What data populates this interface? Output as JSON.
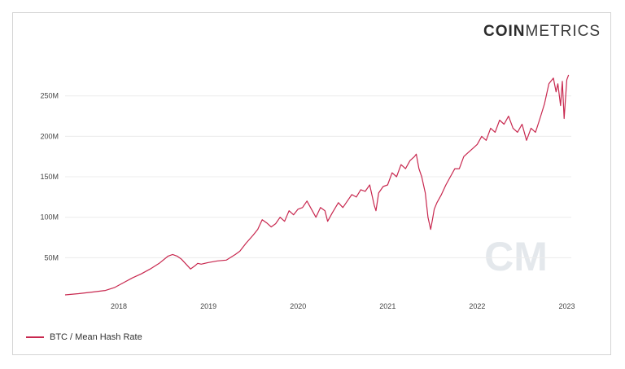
{
  "brand": {
    "bold": "COIN",
    "light": "METRICS"
  },
  "watermark": "CM",
  "colors": {
    "line": "#c8284f",
    "grid": "#ececec",
    "tick": "#444444",
    "watermark": "#e4e8ec"
  },
  "chart_data": {
    "type": "line",
    "title": "",
    "xlabel": "",
    "ylabel": "",
    "grid": true,
    "legend_position": "bottom-left",
    "xlim": [
      2017.4,
      2023.05
    ],
    "ylim": [
      0,
      290000000
    ],
    "yticks": [
      50000000,
      100000000,
      150000000,
      200000000,
      250000000
    ],
    "ytick_labels": [
      "50M",
      "100M",
      "150M",
      "200M",
      "250M"
    ],
    "xticks": [
      2018,
      2019,
      2020,
      2021,
      2022,
      2023
    ],
    "xtick_labels": [
      "2018",
      "2019",
      "2020",
      "2021",
      "2022",
      "2023"
    ],
    "series": [
      {
        "name": "BTC / Mean Hash Rate",
        "x": [
          2017.4,
          2017.55,
          2017.7,
          2017.85,
          2017.95,
          2018.05,
          2018.15,
          2018.25,
          2018.35,
          2018.45,
          2018.55,
          2018.6,
          2018.65,
          2018.7,
          2018.8,
          2018.85,
          2018.88,
          2018.92,
          2019.0,
          2019.1,
          2019.2,
          2019.3,
          2019.35,
          2019.42,
          2019.5,
          2019.55,
          2019.6,
          2019.65,
          2019.7,
          2019.75,
          2019.8,
          2019.85,
          2019.9,
          2019.95,
          2020.0,
          2020.05,
          2020.1,
          2020.15,
          2020.2,
          2020.25,
          2020.3,
          2020.33,
          2020.38,
          2020.45,
          2020.5,
          2020.55,
          2020.6,
          2020.65,
          2020.7,
          2020.75,
          2020.8,
          2020.85,
          2020.87,
          2020.9,
          2020.95,
          2021.0,
          2021.05,
          2021.1,
          2021.15,
          2021.2,
          2021.25,
          2021.3,
          2021.32,
          2021.35,
          2021.38,
          2021.42,
          2021.45,
          2021.48,
          2021.5,
          2021.52,
          2021.55,
          2021.6,
          2021.65,
          2021.7,
          2021.75,
          2021.8,
          2021.85,
          2021.9,
          2021.95,
          2022.0,
          2022.05,
          2022.1,
          2022.15,
          2022.2,
          2022.25,
          2022.3,
          2022.35,
          2022.4,
          2022.45,
          2022.5,
          2022.55,
          2022.6,
          2022.65,
          2022.7,
          2022.75,
          2022.8,
          2022.85,
          2022.88,
          2022.9,
          2022.93,
          2022.95,
          2022.97,
          2023.0,
          2023.02
        ],
        "values": [
          4000000,
          5500000,
          7500000,
          9500000,
          13000000,
          19000000,
          25000000,
          30000000,
          36000000,
          43000000,
          52000000,
          54000000,
          52000000,
          48000000,
          36000000,
          40000000,
          43000000,
          42000000,
          44000000,
          46000000,
          47000000,
          54000000,
          58000000,
          68000000,
          78000000,
          85000000,
          97000000,
          93000000,
          88000000,
          92000000,
          100000000,
          95000000,
          108000000,
          103000000,
          110000000,
          112000000,
          120000000,
          110000000,
          100000000,
          112000000,
          108000000,
          95000000,
          105000000,
          118000000,
          112000000,
          120000000,
          128000000,
          125000000,
          134000000,
          132000000,
          140000000,
          115000000,
          108000000,
          130000000,
          138000000,
          140000000,
          155000000,
          150000000,
          165000000,
          160000000,
          170000000,
          175000000,
          178000000,
          160000000,
          150000000,
          130000000,
          100000000,
          85000000,
          97000000,
          110000000,
          118000000,
          128000000,
          140000000,
          150000000,
          160000000,
          160000000,
          175000000,
          180000000,
          185000000,
          190000000,
          200000000,
          195000000,
          210000000,
          205000000,
          220000000,
          215000000,
          225000000,
          210000000,
          205000000,
          215000000,
          195000000,
          210000000,
          205000000,
          222000000,
          240000000,
          265000000,
          272000000,
          255000000,
          265000000,
          238000000,
          268000000,
          222000000,
          270000000,
          276000000
        ]
      }
    ]
  }
}
